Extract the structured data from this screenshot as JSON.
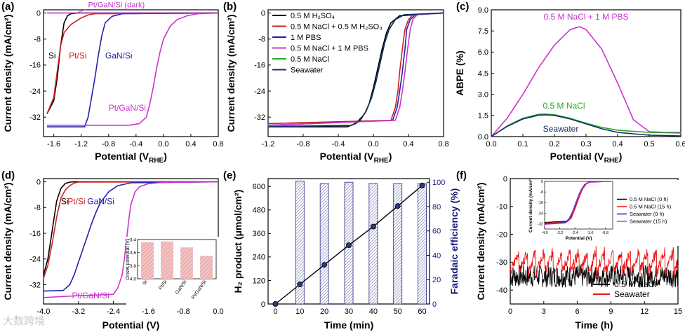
{
  "watermark": "大数跨境",
  "chart_data": [
    {
      "panel": "(a)",
      "type": "line",
      "xlabel": "Potential (V",
      "xlabel_sub": "RHE",
      "xlabel_end": ")",
      "ylabel": "Current density (mA/cm²)",
      "xlim": [
        -1.75,
        0.8
      ],
      "ylim": [
        -38,
        1
      ],
      "xticks": [
        -1.6,
        -1.2,
        -0.8,
        -0.4,
        0.0,
        0.4,
        0.8
      ],
      "xtick_labels": [
        "-1.6",
        "-1.2",
        "-0.8",
        "-0.4",
        "0.0",
        "0.4",
        "0.8"
      ],
      "yticks": [
        0,
        -8,
        -16,
        -24,
        -32
      ],
      "ytick_labels": [
        "0",
        "-8",
        "-16",
        "-24",
        "-32"
      ],
      "series": [
        {
          "name": "Si",
          "color": "#000000",
          "x": [
            -1.7,
            -1.6,
            -1.55,
            -1.5,
            -1.45,
            -1.4,
            -1.35,
            -1.25,
            0.8
          ],
          "y": [
            -31,
            -27,
            -20,
            -10,
            -3,
            -0.8,
            -0.2,
            0,
            0
          ]
        },
        {
          "name": "Pt/Si",
          "color": "#cc2222",
          "x": [
            -1.7,
            -1.6,
            -1.55,
            -1.5,
            -1.45,
            -1.35,
            -1.2,
            -1.1,
            -1.0,
            0.8
          ],
          "y": [
            -31,
            -26,
            -18,
            -10,
            -6,
            -3.5,
            -1.5,
            -0.6,
            -0.2,
            0
          ]
        },
        {
          "name": "GaN/Si",
          "color": "#2222aa",
          "x": [
            -1.7,
            -1.3,
            -1.15,
            -1.1,
            -1.05,
            -1.0,
            -0.95,
            -0.9,
            -0.85,
            -0.75,
            -0.6,
            0.8
          ],
          "y": [
            -35,
            -35,
            -35,
            -32,
            -26,
            -20,
            -13,
            -7,
            -3,
            -1,
            -0.2,
            0
          ]
        },
        {
          "name": "Pt/GaN/Si",
          "color": "#cc33cc",
          "x": [
            -1.7,
            -0.5,
            -0.35,
            -0.25,
            -0.2,
            -0.15,
            -0.1,
            -0.05,
            0.0,
            0.1,
            0.2,
            0.35,
            0.5,
            0.8
          ],
          "y": [
            -34.5,
            -34.5,
            -34,
            -32,
            -28,
            -23,
            -17,
            -12,
            -8,
            -4,
            -2,
            -0.8,
            -0.2,
            0
          ]
        },
        {
          "name": "Pt/GaN/Si (dark)",
          "color": "#cc33cc",
          "x": [
            -1.7,
            0.8
          ],
          "y": [
            0,
            0
          ]
        }
      ],
      "annotations": [
        "Si",
        "Pt/Si",
        "GaN/Si",
        "Pt/GaN/Si",
        "Pt/GaN/Si (dark)"
      ]
    },
    {
      "panel": "(b)",
      "type": "line",
      "xlabel": "Potential (V",
      "xlabel_sub": "RHE",
      "xlabel_end": ")",
      "ylabel": "Current density (mA/cm²)",
      "xlim": [
        -1.2,
        0.8
      ],
      "ylim": [
        -38,
        1
      ],
      "xticks": [
        -1.2,
        -0.8,
        -0.4,
        0.0,
        0.4,
        0.8
      ],
      "xtick_labels": [
        "-1.2",
        "-0.8",
        "-0.4",
        "0.0",
        "0.4",
        "0.8"
      ],
      "yticks": [
        0,
        -8,
        -16,
        -24,
        -32
      ],
      "ytick_labels": [
        "0",
        "-8",
        "-16",
        "-24",
        "-32"
      ],
      "legend": "top-left",
      "legend_labels": [
        "0.5 M H₂SO₄",
        "0.5 M NaCl + 0.5 M H₂SO₄",
        "1 M PBS",
        "0.5 M NaCl + 1 M PBS",
        "0.5 M NaCl",
        "Seawater"
      ],
      "series": [
        {
          "name": "0.5 M H₂SO₄",
          "color": "#000000",
          "x": [
            -1.2,
            -0.3,
            -0.2,
            -0.1,
            -0.05,
            0.0,
            0.05,
            0.1,
            0.15,
            0.2,
            0.3,
            0.8
          ],
          "y": [
            -35,
            -35,
            -34,
            -31,
            -28,
            -23,
            -17,
            -11,
            -6,
            -3,
            -0.8,
            0
          ]
        },
        {
          "name": "0.5 M NaCl + 0.5 M H₂SO₄",
          "color": "#cc2222",
          "x": [
            -1.2,
            0.2,
            0.25,
            0.28,
            0.3,
            0.33,
            0.36,
            0.4,
            0.45,
            0.8
          ],
          "y": [
            -34,
            -33,
            -29,
            -24,
            -18,
            -11,
            -5,
            -2,
            -0.5,
            0
          ]
        },
        {
          "name": "1 M PBS",
          "color": "#2222aa",
          "x": [
            -1.2,
            0.22,
            0.27,
            0.3,
            0.33,
            0.36,
            0.38,
            0.42,
            0.48,
            0.8
          ],
          "y": [
            -34.5,
            -33,
            -29,
            -24,
            -18,
            -11,
            -5,
            -2,
            -0.5,
            0
          ]
        },
        {
          "name": "0.5 M NaCl + 1 M PBS",
          "color": "#cc33cc",
          "x": [
            -1.2,
            0.25,
            0.3,
            0.33,
            0.36,
            0.39,
            0.42,
            0.45,
            0.5,
            0.8
          ],
          "y": [
            -34.5,
            -33,
            -29,
            -24,
            -18,
            -11,
            -5,
            -2,
            -0.5,
            0
          ]
        },
        {
          "name": "0.5 M NaCl",
          "color": "#22aa22",
          "x": [
            -1.2,
            -0.25,
            -0.15,
            -0.08,
            -0.02,
            0.03,
            0.08,
            0.13,
            0.18,
            0.25,
            0.35,
            0.8
          ],
          "y": [
            -34.8,
            -34.5,
            -33,
            -30,
            -26,
            -21,
            -15,
            -9,
            -5,
            -2,
            -0.5,
            0
          ]
        },
        {
          "name": "Seawater",
          "color": "#1a2a6a",
          "x": [
            -1.2,
            -0.25,
            -0.15,
            -0.08,
            -0.02,
            0.03,
            0.08,
            0.13,
            0.18,
            0.25,
            0.35,
            0.8
          ],
          "y": [
            -35,
            -34.6,
            -33,
            -30,
            -26,
            -21,
            -15,
            -9,
            -5,
            -2,
            -0.5,
            0
          ]
        }
      ]
    },
    {
      "panel": "(c)",
      "type": "line",
      "xlabel": "Potential (V",
      "xlabel_sub": "RHE",
      "xlabel_end": ")",
      "ylabel": "ABPE (%)",
      "xlim": [
        0,
        0.6
      ],
      "ylim": [
        0,
        9
      ],
      "xticks": [
        0.0,
        0.1,
        0.2,
        0.3,
        0.4,
        0.5,
        0.6
      ],
      "xtick_labels": [
        "0.0",
        "0.1",
        "0.2",
        "0.3",
        "0.4",
        "0.5",
        "0.6"
      ],
      "yticks": [
        0,
        1.5,
        3.0,
        4.5,
        6.0,
        7.5,
        9.0
      ],
      "ytick_labels": [
        "0.0",
        "1.5",
        "3.0",
        "4.5",
        "6.0",
        "7.5",
        "9.0"
      ],
      "series": [
        {
          "name": "0.5 M NaCl + 1 M PBS",
          "color": "#cc33cc",
          "x": [
            0,
            0.05,
            0.1,
            0.15,
            0.2,
            0.25,
            0.28,
            0.3,
            0.35,
            0.4,
            0.45,
            0.5,
            0.55,
            0.6
          ],
          "y": [
            0,
            1.3,
            3.0,
            4.9,
            6.5,
            7.6,
            7.8,
            7.6,
            6.2,
            3.8,
            1.2,
            0.35,
            0.3,
            0.3
          ]
        },
        {
          "name": "0.5 M NaCl",
          "color": "#22aa22",
          "x": [
            0,
            0.05,
            0.1,
            0.15,
            0.17,
            0.2,
            0.25,
            0.3,
            0.35,
            0.4,
            0.5,
            0.6
          ],
          "y": [
            0,
            0.75,
            1.3,
            1.58,
            1.6,
            1.55,
            1.3,
            0.95,
            0.65,
            0.45,
            0.3,
            0.25
          ]
        },
        {
          "name": "Seawater",
          "color": "#1a2a6a",
          "x": [
            0,
            0.05,
            0.1,
            0.15,
            0.17,
            0.2,
            0.25,
            0.3,
            0.35,
            0.4,
            0.5,
            0.6
          ],
          "y": [
            0,
            0.72,
            1.25,
            1.52,
            1.54,
            1.5,
            1.25,
            0.9,
            0.55,
            0.3,
            0.1,
            0.05
          ]
        }
      ],
      "annotations": [
        "0.5 M NaCl + 1 M PBS",
        "0.5 M NaCl",
        "Seawater"
      ]
    },
    {
      "panel": "(d)",
      "type": "line",
      "xlabel": "Potential (V)",
      "ylabel": "Current density (mA/cm²)",
      "xlim": [
        -4.0,
        0.0
      ],
      "ylim": [
        -38,
        1
      ],
      "xticks": [
        -4.0,
        -3.2,
        -2.4,
        -1.6,
        -0.8,
        0.0
      ],
      "xtick_labels": [
        "-4.0",
        "-3.2",
        "-2.4",
        "-1.6",
        "-0.8",
        "0.0"
      ],
      "yticks": [
        0,
        -8,
        -16,
        -24,
        -32
      ],
      "ytick_labels": [
        "0",
        "-8",
        "-16",
        "-24",
        "-32"
      ],
      "series": [
        {
          "name": "Si",
          "color": "#000000",
          "x": [
            -4.0,
            -3.9,
            -3.8,
            -3.7,
            -3.6,
            -3.5,
            -3.4,
            -3.3,
            0.0
          ],
          "y": [
            -29,
            -24,
            -15,
            -6,
            -2,
            -0.5,
            -0.1,
            0,
            0
          ]
        },
        {
          "name": "Pt/Si",
          "color": "#cc2222",
          "x": [
            -4.0,
            -3.9,
            -3.8,
            -3.7,
            -3.6,
            -3.5,
            -3.4,
            -3.3,
            -3.2,
            0.0
          ],
          "y": [
            -30,
            -26,
            -19,
            -11,
            -5,
            -2.5,
            -1.2,
            -0.4,
            -0.1,
            0
          ]
        },
        {
          "name": "GaN/Si",
          "color": "#2222aa",
          "x": [
            -4.0,
            -3.55,
            -3.4,
            -3.3,
            -3.2,
            -3.1,
            -3.0,
            -2.9,
            -2.8,
            -2.7,
            -2.5,
            -2.3,
            -2.0,
            0.0
          ],
          "y": [
            -34,
            -33.8,
            -32,
            -29,
            -25,
            -21,
            -17,
            -13,
            -9.5,
            -6.5,
            -3,
            -1.2,
            -0.3,
            0
          ]
        },
        {
          "name": "Pt/GaN/Si",
          "color": "#cc33cc",
          "x": [
            -4.0,
            -3.3,
            -2.4,
            -2.3,
            -2.2,
            -2.15,
            -2.1,
            -2.05,
            -2.0,
            -1.9,
            -1.8,
            -1.6,
            -1.3,
            0.0
          ],
          "y": [
            -36,
            -35.5,
            -35,
            -33,
            -29,
            -24,
            -18,
            -12,
            -7,
            -3,
            -1.5,
            -0.6,
            -0.2,
            0
          ]
        }
      ],
      "annotations": [
        "Si",
        "Pt/Si",
        "GaN/Si",
        "Pt/GaN/Si"
      ],
      "inset": {
        "type": "bar",
        "ylabel": "Onset potential (V)",
        "ylim": [
          -4.0,
          -3.4
        ],
        "yticks": [
          -3.4,
          -3.6,
          -3.8,
          -4.0
        ],
        "ytick_labels": [
          "-3.4",
          "-3.6",
          "-3.8",
          "-4.0"
        ],
        "categories": [
          "Si",
          "Pt/Si",
          "GaN/Si",
          "Pt/GaN/Si"
        ],
        "values": [
          -3.44,
          -3.43,
          -3.52,
          -3.65
        ],
        "bar_color": "#f2c2c2",
        "hatch_color": "#cc5555"
      }
    },
    {
      "panel": "(e)",
      "type": "bar",
      "xlabel": "Time (min)",
      "ylabel": "H₂ product (μmol/cm²)",
      "ylabel_right": "Faradaic efficiency (%)",
      "xlim": [
        -3,
        63
      ],
      "ylim": [
        0,
        640
      ],
      "ylim_right": [
        0,
        103
      ],
      "xticks": [
        0,
        10,
        20,
        30,
        40,
        50,
        60
      ],
      "xtick_labels": [
        "0",
        "10",
        "20",
        "30",
        "40",
        "50",
        "60"
      ],
      "yticks": [
        0,
        120,
        240,
        360,
        480,
        600
      ],
      "ytick_labels": [
        "0",
        "120",
        "240",
        "360",
        "480",
        "600"
      ],
      "yticks_right": [
        0,
        20,
        40,
        60,
        80,
        100
      ],
      "ytick_labels_right": [
        "0",
        "20",
        "40",
        "60",
        "80",
        "100"
      ],
      "bars": {
        "name": "Faradaic efficiency",
        "x": [
          10,
          20,
          30,
          40,
          50,
          60
        ],
        "values": [
          101,
          99,
          100,
          99,
          99,
          99
        ]
      },
      "line": {
        "name": "H₂ product",
        "x": [
          0,
          10,
          20,
          30,
          40,
          50,
          60
        ],
        "y": [
          0,
          100,
          200,
          300,
          395,
          500,
          605
        ]
      }
    },
    {
      "panel": "(f)",
      "type": "line",
      "xlabel": "Time (h)",
      "ylabel": "Current density (mA/cm²)",
      "xlim": [
        0,
        15
      ],
      "ylim": [
        -45,
        0
      ],
      "xticks": [
        0,
        3,
        6,
        9,
        12,
        15
      ],
      "xtick_labels": [
        "0",
        "3",
        "6",
        "9",
        "12",
        "15"
      ],
      "yticks": [
        0,
        -10,
        -20,
        -30,
        -40
      ],
      "ytick_labels": [
        "0",
        "-10",
        "-20",
        "-30",
        "-40"
      ],
      "legend": "bottom-right",
      "series": [
        {
          "name": "0.5 M NaCl",
          "color": "#000000",
          "mean": -35,
          "spread": 4
        },
        {
          "name": "Seawater",
          "color": "#ee1111",
          "mean": -31,
          "spread": 4
        }
      ],
      "inset": {
        "ylabel": "Current density (mA/cm²)",
        "xlabel": "Potential (V)",
        "xlim": [
          -4.0,
          -0.4
        ],
        "ylim": [
          -36,
          0
        ],
        "xticks": [
          -4.0,
          -3.2,
          -2.4,
          -1.6,
          -0.8
        ],
        "xtick_labels": [
          "-4.0",
          "-3.2",
          "-2.4",
          "-1.6",
          "-0.8"
        ],
        "yticks": [
          0,
          -8,
          -16,
          -24,
          -32
        ],
        "ytick_labels": [
          "0",
          "-8",
          "-16",
          "-24",
          "-32"
        ],
        "legend_labels": [
          "0.5 M NaCl (0 h)",
          "0.5 M NaCl (15 h)",
          "Seawater (0 h)",
          "Seawater (15 h)"
        ],
        "series": [
          {
            "name": "0.5 M NaCl (0 h)",
            "color": "#000000",
            "x": [
              -4.0,
              -2.8,
              -2.6,
              -2.4,
              -2.2,
              -2.0,
              -1.8,
              -1.6,
              -0.4
            ],
            "y": [
              -31,
              -30,
              -27,
              -20,
              -12,
              -5,
              -1.5,
              -0.3,
              0
            ]
          },
          {
            "name": "0.5 M NaCl (15 h)",
            "color": "#ee1111",
            "x": [
              -4.0,
              -2.8,
              -2.6,
              -2.4,
              -2.2,
              -2.0,
              -1.8,
              -1.6,
              -0.4
            ],
            "y": [
              -31.5,
              -30.5,
              -28,
              -21,
              -13,
              -6,
              -2,
              -0.4,
              0
            ]
          },
          {
            "name": "Seawater (0 h)",
            "color": "#2222aa",
            "x": [
              -4.0,
              -2.9,
              -2.7,
              -2.5,
              -2.3,
              -2.1,
              -1.9,
              -1.7,
              -0.4
            ],
            "y": [
              -32,
              -31,
              -28,
              -22,
              -14,
              -7,
              -2.5,
              -0.6,
              0
            ]
          },
          {
            "name": "Seawater (15 h)",
            "color": "#cc33cc",
            "x": [
              -4.0,
              -2.9,
              -2.7,
              -2.5,
              -2.3,
              -2.1,
              -1.9,
              -1.7,
              -0.4
            ],
            "y": [
              -32.5,
              -31.5,
              -29,
              -23,
              -15,
              -8,
              -3,
              -0.8,
              0
            ]
          }
        ]
      }
    }
  ]
}
